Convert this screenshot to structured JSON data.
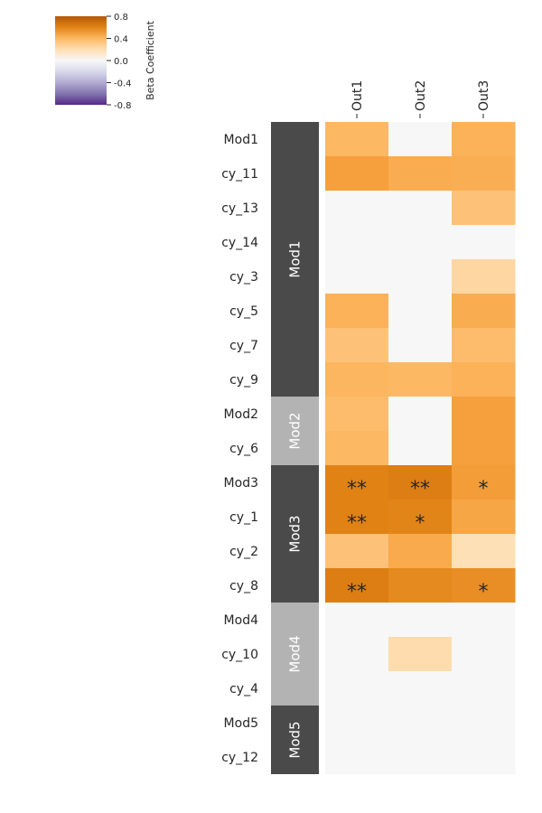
{
  "chart_data": {
    "type": "heatmap",
    "title": "",
    "columns": [
      "Out1",
      "Out2",
      "Out3"
    ],
    "rows": [
      "Mod1",
      "cy_11",
      "cy_13",
      "cy_14",
      "cy_3",
      "cy_5",
      "cy_7",
      "cy_9",
      "Mod2",
      "cy_6",
      "Mod3",
      "cy_1",
      "cy_2",
      "cy_8",
      "Mod4",
      "cy_10",
      "cy_4",
      "Mod5",
      "cy_12"
    ],
    "values": [
      [
        0.4,
        0.0,
        0.45
      ],
      [
        0.6,
        0.5,
        0.48
      ],
      [
        0.0,
        0.0,
        0.35
      ],
      [
        0.0,
        0.0,
        0.0
      ],
      [
        0.0,
        0.0,
        0.25
      ],
      [
        0.45,
        0.0,
        0.5
      ],
      [
        0.35,
        0.0,
        0.38
      ],
      [
        0.42,
        0.4,
        0.45
      ],
      [
        0.38,
        0.0,
        0.6
      ],
      [
        0.4,
        0.0,
        0.6
      ],
      [
        0.8,
        0.82,
        0.62
      ],
      [
        0.8,
        0.78,
        0.55
      ],
      [
        0.35,
        0.52,
        0.2
      ],
      [
        0.82,
        0.75,
        0.72
      ],
      [
        0.0,
        0.0,
        0.0
      ],
      [
        0.0,
        0.22,
        0.0
      ],
      [
        0.0,
        0.0,
        0.0
      ],
      [
        0.0,
        0.0,
        0.0
      ],
      [
        0.0,
        0.0,
        0.0
      ]
    ],
    "significance": [
      [
        "",
        "",
        ""
      ],
      [
        "",
        "",
        ""
      ],
      [
        "",
        "",
        ""
      ],
      [
        "",
        "",
        ""
      ],
      [
        "",
        "",
        ""
      ],
      [
        "",
        "",
        ""
      ],
      [
        "",
        "",
        ""
      ],
      [
        "",
        "",
        ""
      ],
      [
        "",
        "",
        ""
      ],
      [
        "",
        "",
        ""
      ],
      [
        "**",
        "**",
        "*"
      ],
      [
        "**",
        "*",
        ""
      ],
      [
        "",
        "",
        ""
      ],
      [
        "**",
        "",
        "*"
      ],
      [
        "",
        "",
        ""
      ],
      [
        "",
        "",
        ""
      ],
      [
        "",
        "",
        ""
      ],
      [
        "",
        "",
        ""
      ],
      [
        "",
        "",
        ""
      ]
    ],
    "modules": [
      {
        "label": "Mod1",
        "start": 0,
        "end": 7,
        "color": "#4a4a4a"
      },
      {
        "label": "Mod2",
        "start": 8,
        "end": 9,
        "color": "#b3b3b3"
      },
      {
        "label": "Mod3",
        "start": 10,
        "end": 13,
        "color": "#4a4a4a"
      },
      {
        "label": "Mod4",
        "start": 14,
        "end": 16,
        "color": "#b3b3b3"
      },
      {
        "label": "Mod5",
        "start": 17,
        "end": 18,
        "color": "#4a4a4a"
      }
    ],
    "colorbar": {
      "label": "Beta Coefficient",
      "range": [
        -0.8,
        0.8
      ],
      "ticks": [
        "0.8",
        "0.4",
        "0.0",
        "-0.4",
        "-0.8"
      ],
      "tick_values": [
        0.8,
        0.4,
        0.0,
        -0.4,
        -0.8
      ],
      "colormap": "PuOr_r",
      "placement": "top-left"
    }
  }
}
